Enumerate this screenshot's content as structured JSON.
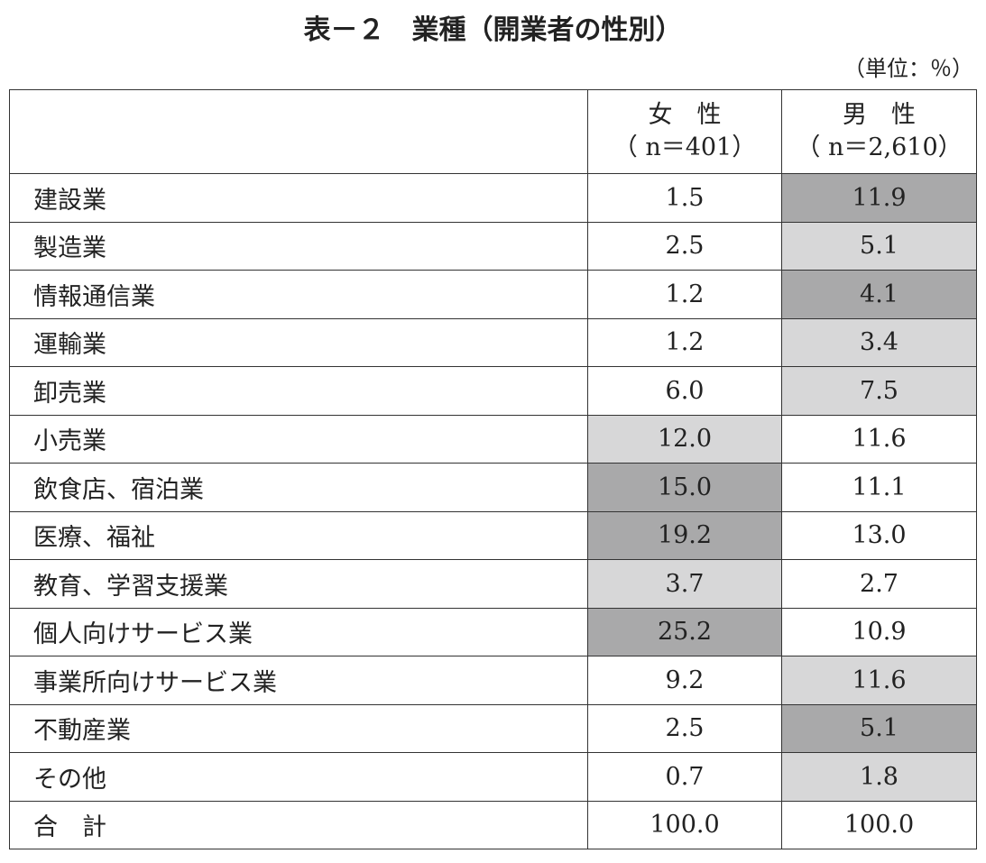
{
  "title": "表－２　業種（開業者の性別）",
  "unit": "（単位：％）",
  "table": {
    "header": [
      {
        "label": "女　性",
        "sub": "（ n＝401）"
      },
      {
        "label": "男　性",
        "sub": "（ n＝2,610）"
      }
    ],
    "rows": [
      {
        "label": "建設業",
        "values": [
          "1.5",
          "11.9"
        ],
        "shading": [
          null,
          "#a9a9aa"
        ]
      },
      {
        "label": "製造業",
        "values": [
          "2.5",
          "5.1"
        ],
        "shading": [
          null,
          "#d7d7d8"
        ]
      },
      {
        "label": "情報通信業",
        "values": [
          "1.2",
          "4.1"
        ],
        "shading": [
          null,
          "#a9a9aa"
        ]
      },
      {
        "label": "運輸業",
        "values": [
          "1.2",
          "3.4"
        ],
        "shading": [
          null,
          "#d7d7d8"
        ]
      },
      {
        "label": "卸売業",
        "values": [
          "6.0",
          "7.5"
        ],
        "shading": [
          null,
          "#d7d7d8"
        ]
      },
      {
        "label": "小売業",
        "values": [
          "12.0",
          "11.6"
        ],
        "shading": [
          "#d7d7d8",
          null
        ]
      },
      {
        "label": "飲食店、宿泊業",
        "values": [
          "15.0",
          "11.1"
        ],
        "shading": [
          "#a9a9aa",
          null
        ]
      },
      {
        "label": "医療、福祉",
        "values": [
          "19.2",
          "13.0"
        ],
        "shading": [
          "#a9a9aa",
          null
        ]
      },
      {
        "label": "教育、学習支援業",
        "values": [
          "3.7",
          "2.7"
        ],
        "shading": [
          "#d7d7d8",
          null
        ]
      },
      {
        "label": "個人向けサービス業",
        "values": [
          "25.2",
          "10.9"
        ],
        "shading": [
          "#a9a9aa",
          null
        ]
      },
      {
        "label": "事業所向けサービス業",
        "values": [
          "9.2",
          "11.6"
        ],
        "shading": [
          null,
          "#d7d7d8"
        ]
      },
      {
        "label": "不動産業",
        "values": [
          "2.5",
          "5.1"
        ],
        "shading": [
          null,
          "#a9a9aa"
        ]
      },
      {
        "label": "その他",
        "values": [
          "0.7",
          "1.8"
        ],
        "shading": [
          null,
          "#d7d7d8"
        ]
      },
      {
        "label": "合　計",
        "values": [
          "100.0",
          "100.0"
        ],
        "shading": [
          null,
          null
        ]
      }
    ]
  }
}
